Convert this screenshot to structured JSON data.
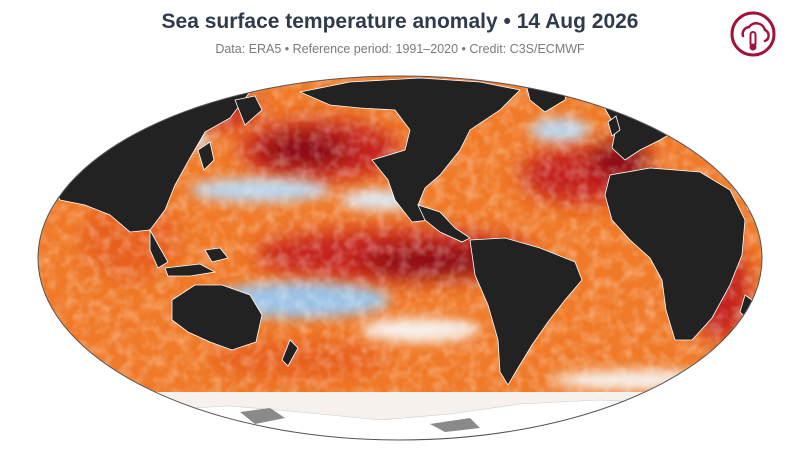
{
  "header": {
    "title": "Sea surface temperature anomaly • 14 Aug 2026",
    "subtitle": "Data: ERA5 • Reference period: 1991–2020 • Credit: C3S/ECMWF"
  },
  "logo": {
    "icon": "thermometer-cloud-icon",
    "color": "#a3123a"
  },
  "palette": {
    "ocean_warm": "#f07a28",
    "ocean_hot": "#c4221a",
    "ocean_extreme": "#8b0f14",
    "ocean_cool": "#9cc3e6",
    "ocean_neutral": "#f6f1ec",
    "land": "#222222",
    "ice": "#ffffff",
    "ice_gray": "#8a8a8a"
  }
}
